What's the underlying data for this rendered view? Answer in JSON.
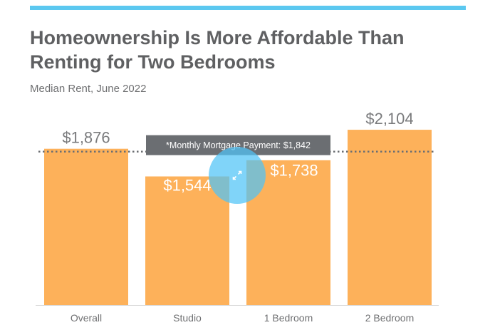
{
  "colors": {
    "accent_bar": "#5bc8f0",
    "bar": "#fdb15a",
    "annotation_bg": "#6b6e72",
    "reference_line": "#6b6e72",
    "label_outside": "#7a7b7d",
    "label_inside": "#ffffff",
    "expand_button": "#4fc3f7"
  },
  "expand_icon": "expand-arrows-icon",
  "chart_data": {
    "type": "bar",
    "title": "Homeownership Is More Affordable Than Renting for Two Bedrooms",
    "subtitle": "Median Rent, June 2022",
    "categories": [
      "Overall",
      "Studio",
      "1 Bedroom",
      "2 Bedroom"
    ],
    "values": [
      1876,
      1544,
      1738,
      2104
    ],
    "value_labels": [
      "$1,876",
      "$1,544",
      "$1,738",
      "$2,104"
    ],
    "ylim": [
      0,
      2250
    ],
    "grid": false,
    "reference_line": {
      "value": 1842,
      "label": "*Monthly Mortgage Payment: $1,842"
    }
  }
}
